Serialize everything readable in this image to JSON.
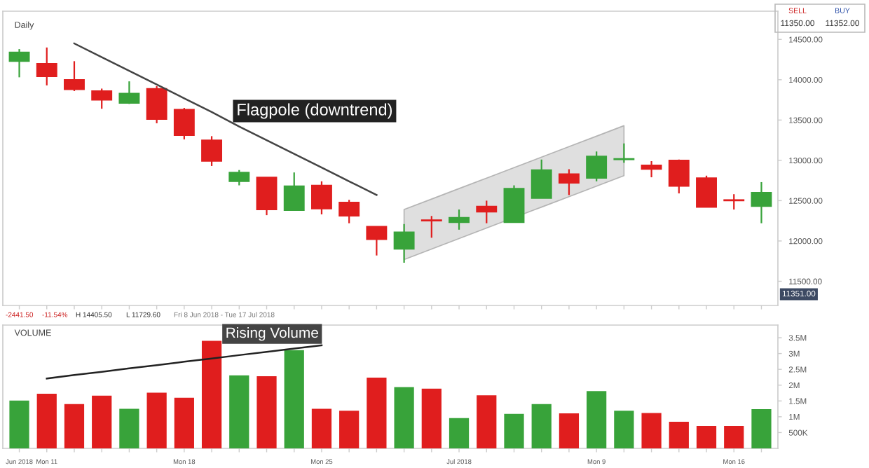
{
  "chart_data": [
    {
      "type": "candlestick",
      "title": "Daily",
      "categories": [
        null,
        null,
        null,
        null,
        null,
        null,
        null,
        null,
        null,
        null,
        null,
        null,
        null,
        null,
        null,
        null,
        null,
        null,
        null,
        null,
        null,
        null,
        null,
        null,
        null,
        null,
        null,
        null
      ],
      "ohlc": [
        [
          14230,
          14380,
          14030,
          14340
        ],
        [
          14200,
          14400,
          13930,
          14040
        ],
        [
          14000,
          14230,
          13860,
          13880
        ],
        [
          13860,
          13890,
          13640,
          13750
        ],
        [
          13710,
          13980,
          13700,
          13830
        ],
        [
          13890,
          13920,
          13460,
          13510
        ],
        [
          13630,
          13650,
          13260,
          13310
        ],
        [
          13250,
          13300,
          12930,
          12990
        ],
        [
          12740,
          12880,
          12690,
          12850
        ],
        [
          12790,
          12790,
          12320,
          12390
        ],
        [
          12380,
          12850,
          12380,
          12680
        ],
        [
          12690,
          12740,
          12330,
          12400
        ],
        [
          12480,
          12510,
          12220,
          12310
        ],
        [
          12180,
          12180,
          11820,
          12020
        ],
        [
          11900,
          12210,
          11730,
          12110
        ],
        [
          12260,
          12310,
          12040,
          12250
        ],
        [
          12230,
          12390,
          12140,
          12290
        ],
        [
          12430,
          12500,
          12220,
          12360
        ],
        [
          12230,
          12690,
          12230,
          12650
        ],
        [
          12530,
          13010,
          12530,
          12880
        ],
        [
          12830,
          12890,
          12570,
          12720
        ],
        [
          12780,
          13110,
          12740,
          13050
        ],
        [
          13010,
          13210,
          12970,
          13020
        ],
        [
          12940,
          12990,
          12790,
          12890
        ],
        [
          13000,
          13010,
          12590,
          12680
        ],
        [
          12780,
          12810,
          12420,
          12420
        ],
        [
          12510,
          12580,
          12390,
          12500
        ],
        [
          12430,
          12730,
          12220,
          12600
        ]
      ],
      "colors": [
        "#38a33a",
        "#e01e1e",
        "#e01e1e",
        "#e01e1e",
        "#38a33a",
        "#e01e1e",
        "#e01e1e",
        "#e01e1e",
        "#38a33a",
        "#e01e1e",
        "#38a33a",
        "#e01e1e",
        "#e01e1e",
        "#e01e1e",
        "#38a33a",
        "#e01e1e",
        "#38a33a",
        "#e01e1e",
        "#38a33a",
        "#38a33a",
        "#e01e1e",
        "#38a33a",
        "#38a33a",
        "#e01e1e",
        "#e01e1e",
        "#e01e1e",
        "#e01e1e",
        "#38a33a"
      ],
      "series": [
        {
          "type": "line",
          "color": "#444444",
          "values": [
            null,
            null,
            14450,
            14280,
            14110,
            13940,
            13770,
            13600,
            13420,
            13250,
            13080,
            12910,
            12740,
            12570,
            null,
            null,
            null,
            null,
            null,
            null,
            null,
            null,
            null,
            null,
            null,
            null,
            null,
            null
          ]
        },
        {
          "type": "line",
          "color": "#d9d9d9",
          "values": [
            null,
            null,
            null,
            null,
            null,
            null,
            null,
            null,
            null,
            null,
            null,
            null,
            null,
            null,
            null,
            null,
            null,
            null,
            null,
            null,
            null,
            null,
            null,
            null,
            null,
            null,
            null,
            null
          ],
          "lower": [
            null,
            null,
            null,
            null,
            null,
            null,
            null,
            null,
            null,
            null,
            null,
            null,
            null,
            null,
            11770,
            11900,
            12030,
            12160,
            12290,
            12420,
            12550,
            12680,
            12810,
            null,
            null,
            null,
            null,
            null
          ],
          "upper": [
            null,
            null,
            null,
            null,
            null,
            null,
            null,
            null,
            null,
            null,
            null,
            null,
            null,
            null,
            12390,
            12520,
            12650,
            12780,
            12910,
            13040,
            13170,
            13300,
            13430,
            null,
            null,
            null,
            null,
            null
          ]
        }
      ],
      "annotations": [
        "Flagpole (downtrend)",
        "SELL",
        "11350.00",
        "BUY",
        "11352.00",
        "-2441.50",
        "-11.54%",
        "H 14405.50",
        "L 11729.60",
        "Fri 8 Jun 2018 - Tue 17 Jul 2018",
        "11351.00"
      ],
      "ylim": [
        11200,
        14850
      ],
      "yticks": [
        {
          "value": 11500,
          "label": "11500.00"
        },
        {
          "value": 12000,
          "label": "12000.00"
        },
        {
          "value": 12500,
          "label": "12500.00"
        },
        {
          "value": 13000,
          "label": "13000.00"
        },
        {
          "value": 13500,
          "label": "13500.00"
        },
        {
          "value": 14000,
          "label": "14000.00"
        },
        {
          "value": 14500,
          "label": "14500.00"
        }
      ],
      "tick_labels": "y"
    },
    {
      "type": "bar",
      "title": "VOLUME",
      "categories": [
        "Jun 2018",
        "Mon 11",
        null,
        null,
        null,
        null,
        "Mon 18",
        null,
        null,
        null,
        null,
        "Mon 25",
        null,
        null,
        null,
        null,
        "Jul 2018",
        null,
        null,
        null,
        null,
        "Mon 9",
        null,
        null,
        null,
        null,
        "Mon 16",
        null
      ],
      "values": [
        1510000,
        1730000,
        1400000,
        1670000,
        1250000,
        1760000,
        1600000,
        3400000,
        2310000,
        2280000,
        3110000,
        1250000,
        1190000,
        2240000,
        1940000,
        1890000,
        960000,
        1680000,
        1090000,
        1400000,
        1110000,
        1810000,
        1190000,
        1120000,
        840000,
        710000,
        710000,
        1240000
      ],
      "colors": [
        "#38a33a",
        "#e01e1e",
        "#e01e1e",
        "#e01e1e",
        "#38a33a",
        "#e01e1e",
        "#e01e1e",
        "#e01e1e",
        "#38a33a",
        "#e01e1e",
        "#38a33a",
        "#e01e1e",
        "#e01e1e",
        "#e01e1e",
        "#38a33a",
        "#e01e1e",
        "#38a33a",
        "#e01e1e",
        "#38a33a",
        "#38a33a",
        "#e01e1e",
        "#38a33a",
        "#38a33a",
        "#e01e1e",
        "#e01e1e",
        "#e01e1e",
        "#e01e1e",
        "#38a33a"
      ],
      "series": [
        {
          "type": "line",
          "color": "#222222",
          "values": [
            null,
            2210000,
            2320000,
            2420000,
            2530000,
            2630000,
            2740000,
            2840000,
            2950000,
            3050000,
            3160000,
            3260000,
            null,
            null,
            null,
            null,
            null,
            null,
            null,
            null,
            null,
            null,
            null,
            null,
            null,
            null,
            null,
            null
          ]
        }
      ],
      "annotations": [
        "Rising Volume"
      ],
      "ylim": [
        0,
        3900000
      ],
      "yticks": [
        {
          "value": 500000,
          "label": "500K"
        },
        {
          "value": 1000000,
          "label": "1M"
        },
        {
          "value": 1500000,
          "label": "1.5M"
        },
        {
          "value": 2000000,
          "label": "2M"
        },
        {
          "value": 2500000,
          "label": "2.5M"
        },
        {
          "value": 3000000,
          "label": "3M"
        },
        {
          "value": 3500000,
          "label": "3.5M"
        }
      ]
    }
  ]
}
